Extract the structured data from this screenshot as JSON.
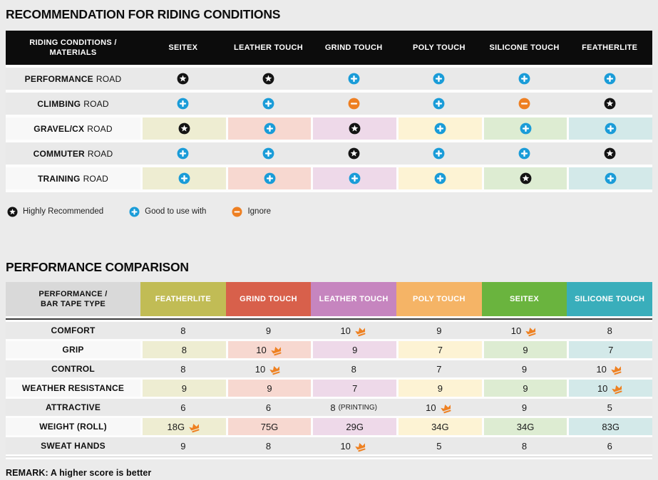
{
  "colors": {
    "page_bg": "#ebebeb",
    "table_bg": "#fdfdfd",
    "row_gray": "#e9e9e9",
    "row_label_white": "#f8f8f8",
    "header_black": "#0c0c0c",
    "header_gray": "#d9d9d9",
    "divider_dark": "#3b3b3b",
    "divider_light": "#cccccc",
    "icon_blue": "#1a9cd8",
    "icon_orange": "#ee7f22",
    "icon_black": "#141414",
    "crown_orange": "#ee8122",
    "tints": [
      "#eeedd2",
      "#f7d8d0",
      "#eed9e9",
      "#fdf3d4",
      "#ddecd2",
      "#d3e9e9"
    ]
  },
  "chart_data": [
    {
      "type": "table",
      "title": "RECOMMENDATION FOR RIDING CONDITIONS",
      "corner_header": [
        "RIDING CONDITIONS /",
        "MATERIALS"
      ],
      "columns": [
        "SEITEX",
        "LEATHER TOUCH",
        "GRIND TOUCH",
        "POLY TOUCH",
        "SILICONE TOUCH",
        "FEATHERLITE"
      ],
      "rows": [
        {
          "condition": "PERFORMANCE",
          "condition_suffix": "ROAD",
          "tinted": false,
          "ratings": [
            "star",
            "star",
            "plus",
            "plus",
            "plus",
            "plus"
          ]
        },
        {
          "condition": "CLIMBING",
          "condition_suffix": "ROAD",
          "tinted": false,
          "ratings": [
            "plus",
            "plus",
            "minus",
            "plus",
            "minus",
            "star"
          ]
        },
        {
          "condition": "GRAVEL/CX",
          "condition_suffix": "ROAD",
          "tinted": true,
          "ratings": [
            "star",
            "plus",
            "star",
            "plus",
            "plus",
            "plus"
          ]
        },
        {
          "condition": "COMMUTER",
          "condition_suffix": "ROAD",
          "tinted": false,
          "ratings": [
            "plus",
            "plus",
            "star",
            "plus",
            "plus",
            "star"
          ]
        },
        {
          "condition": "TRAINING",
          "condition_suffix": "ROAD",
          "tinted": true,
          "ratings": [
            "plus",
            "plus",
            "plus",
            "plus",
            "star",
            "plus"
          ]
        }
      ],
      "legend": [
        {
          "icon": "star",
          "label": "Highly Recommended"
        },
        {
          "icon": "plus",
          "label": "Good to use with"
        },
        {
          "icon": "minus",
          "label": "Ignore"
        }
      ]
    },
    {
      "type": "table",
      "title": "PERFORMANCE COMPARISON",
      "corner_header": [
        "PERFORMANCE /",
        "BAR TAPE TYPE"
      ],
      "columns": [
        {
          "label": "FEATHERLITE",
          "color": "#c1bc55"
        },
        {
          "label": "GRIND TOUCH",
          "color": "#d8604b"
        },
        {
          "label": "LEATHER TOUCH",
          "color": "#c685bf"
        },
        {
          "label": "POLY TOUCH",
          "color": "#f5b466"
        },
        {
          "label": "SEITEX",
          "color": "#6ab43e"
        },
        {
          "label": "SILICONE TOUCH",
          "color": "#39aebb"
        }
      ],
      "rows": [
        {
          "metric": "COMFORT",
          "tinted": false,
          "cells": [
            {
              "value": "8"
            },
            {
              "value": "9"
            },
            {
              "value": "10",
              "crown": true
            },
            {
              "value": "9"
            },
            {
              "value": "10",
              "crown": true
            },
            {
              "value": "8"
            }
          ]
        },
        {
          "metric": "GRIP",
          "tinted": true,
          "cells": [
            {
              "value": "8"
            },
            {
              "value": "10",
              "crown": true
            },
            {
              "value": "9"
            },
            {
              "value": "7"
            },
            {
              "value": "9"
            },
            {
              "value": "7"
            }
          ]
        },
        {
          "metric": "CONTROL",
          "tinted": false,
          "cells": [
            {
              "value": "8"
            },
            {
              "value": "10",
              "crown": true
            },
            {
              "value": "8"
            },
            {
              "value": "7"
            },
            {
              "value": "9"
            },
            {
              "value": "10",
              "crown": true
            }
          ]
        },
        {
          "metric": "WEATHER RESISTANCE",
          "tinted": true,
          "cells": [
            {
              "value": "9"
            },
            {
              "value": "9"
            },
            {
              "value": "7"
            },
            {
              "value": "9"
            },
            {
              "value": "9"
            },
            {
              "value": "10",
              "crown": true
            }
          ]
        },
        {
          "metric": "ATTRACTIVE",
          "tinted": false,
          "cells": [
            {
              "value": "6"
            },
            {
              "value": "6"
            },
            {
              "value": "8",
              "note": "(PRINTING)"
            },
            {
              "value": "10",
              "crown": true
            },
            {
              "value": "9"
            },
            {
              "value": "5"
            }
          ]
        },
        {
          "metric": "WEIGHT (ROLL)",
          "tinted": true,
          "cells": [
            {
              "value": "18G",
              "crown": true
            },
            {
              "value": "75G"
            },
            {
              "value": "29G"
            },
            {
              "value": "34G"
            },
            {
              "value": "34G"
            },
            {
              "value": "83G"
            }
          ]
        },
        {
          "metric": "SWEAT HANDS",
          "tinted": false,
          "cells": [
            {
              "value": "9"
            },
            {
              "value": "8"
            },
            {
              "value": "10",
              "crown": true
            },
            {
              "value": "5"
            },
            {
              "value": "8"
            },
            {
              "value": "6"
            }
          ]
        }
      ],
      "remark": "REMARK: A higher score is better"
    }
  ]
}
